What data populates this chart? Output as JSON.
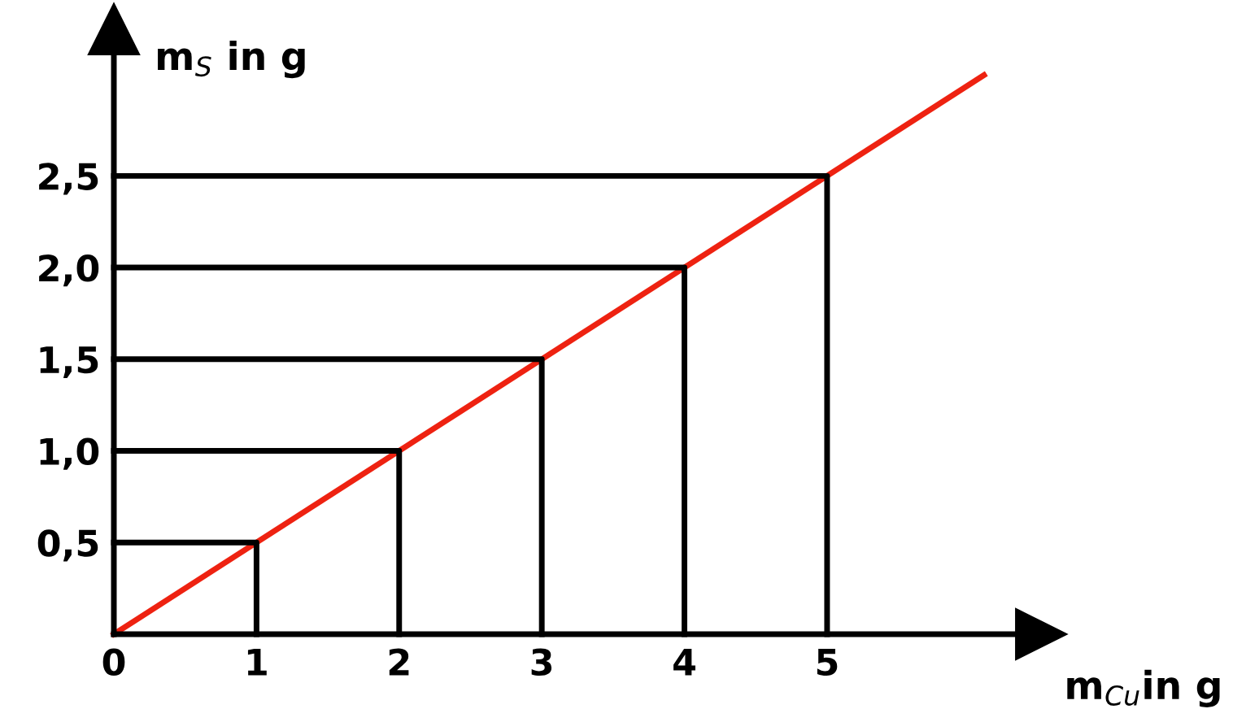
{
  "chart_data": {
    "type": "line",
    "xlabel": "m$_{Cu}$in g",
    "ylabel": "m$_{S}$ in g",
    "xlim": [
      0,
      6.5
    ],
    "ylim": [
      0,
      3.3
    ],
    "xticks": [
      0,
      1,
      2,
      3,
      4,
      5
    ],
    "yticks": [
      {
        "value": 0.5,
        "label": "0,5"
      },
      {
        "value": 1.0,
        "label": "1,0"
      },
      {
        "value": 1.5,
        "label": "1,5"
      },
      {
        "value": 2.0,
        "label": "2,0"
      },
      {
        "value": 2.5,
        "label": "2,5"
      }
    ],
    "grid": false,
    "marker": "none",
    "line_style": "solid",
    "series": [
      {
        "color": "#ee2211",
        "x": [
          0,
          6.1
        ],
        "values": [
          0,
          3.05
        ]
      },
      {
        "color": "#000000",
        "x": [
          0,
          1,
          1
        ],
        "values": [
          0.5,
          0.5,
          0
        ]
      },
      {
        "color": "#000000",
        "x": [
          0,
          2,
          2
        ],
        "values": [
          1.0,
          1.0,
          0
        ]
      },
      {
        "color": "#000000",
        "x": [
          0,
          3,
          3
        ],
        "values": [
          1.5,
          1.5,
          0
        ]
      },
      {
        "color": "#000000",
        "x": [
          0,
          4,
          4
        ],
        "values": [
          2.0,
          2.0,
          0
        ]
      },
      {
        "color": "#000000",
        "x": [
          0,
          5,
          5
        ],
        "values": [
          2.5,
          2.5,
          0
        ]
      }
    ]
  }
}
